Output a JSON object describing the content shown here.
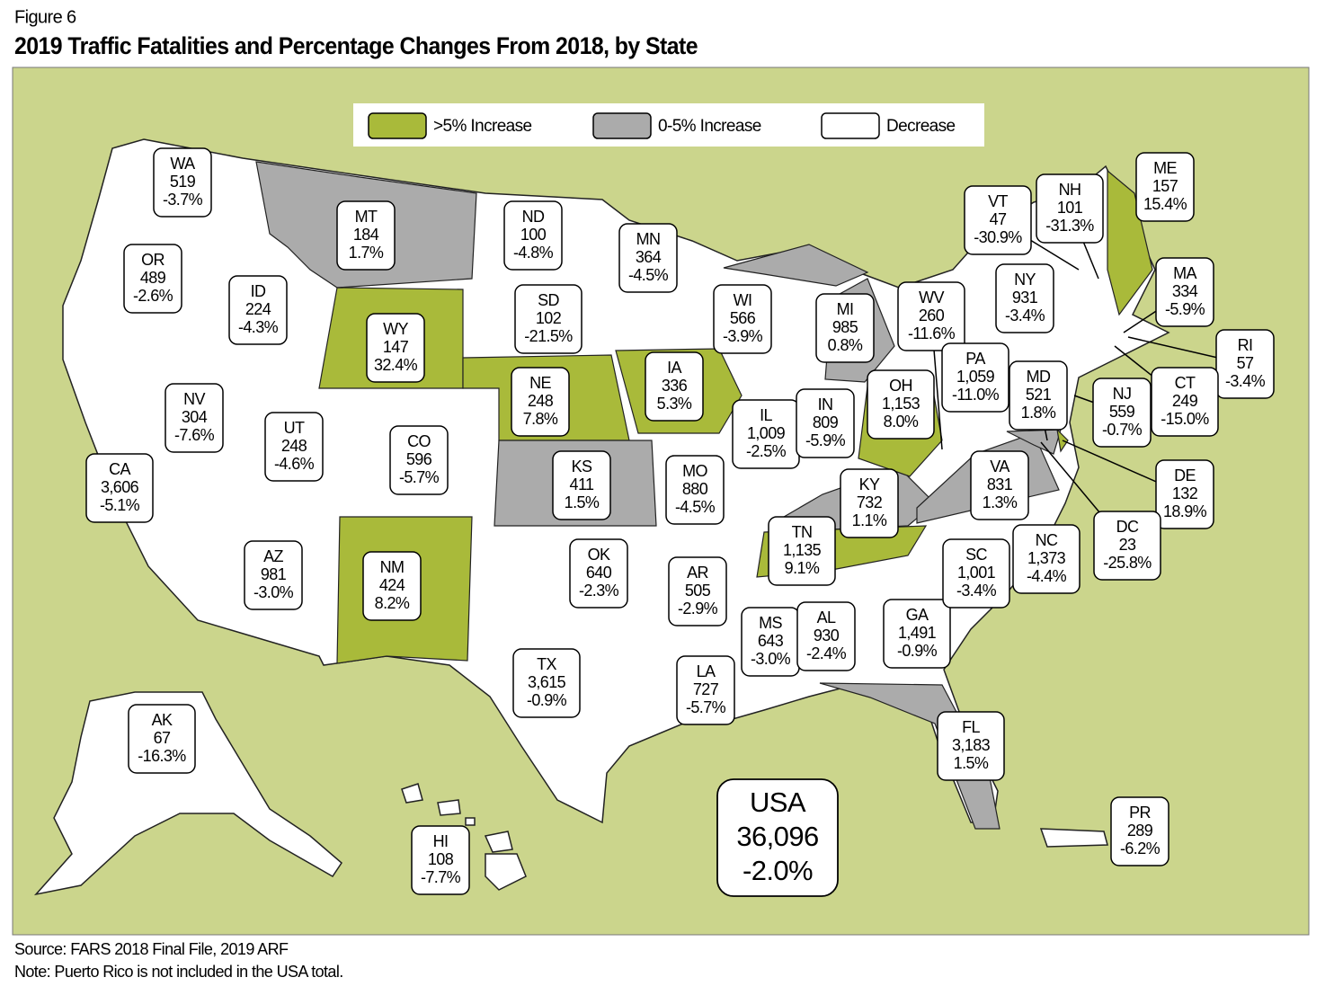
{
  "header": {
    "figure": "Figure 6",
    "title": "2019 Traffic Fatalities and Percentage Changes From 2018, by State"
  },
  "legend": [
    {
      "label": ">5% Increase",
      "color": "#a9ba3a"
    },
    {
      "label": "0-5% Increase",
      "color": "#ababab"
    },
    {
      "label": "Decrease",
      "color": "#ffffff"
    }
  ],
  "background_color": "#cbd58c",
  "states": [
    {
      "abbr": "WA",
      "fatalities": "519",
      "change": "-3.7%"
    },
    {
      "abbr": "OR",
      "fatalities": "489",
      "change": "-2.6%"
    },
    {
      "abbr": "ID",
      "fatalities": "224",
      "change": "-4.3%"
    },
    {
      "abbr": "MT",
      "fatalities": "184",
      "change": "1.7%",
      "color": "#ababab"
    },
    {
      "abbr": "WY",
      "fatalities": "147",
      "change": "32.4%",
      "color": "#a9ba3a"
    },
    {
      "abbr": "NV",
      "fatalities": "304",
      "change": "-7.6%"
    },
    {
      "abbr": "UT",
      "fatalities": "248",
      "change": "-4.6%"
    },
    {
      "abbr": "CO",
      "fatalities": "596",
      "change": "-5.7%"
    },
    {
      "abbr": "CA",
      "fatalities": "3,606",
      "change": "-5.1%"
    },
    {
      "abbr": "AZ",
      "fatalities": "981",
      "change": "-3.0%"
    },
    {
      "abbr": "NM",
      "fatalities": "424",
      "change": "8.2%",
      "color": "#a9ba3a"
    },
    {
      "abbr": "ND",
      "fatalities": "100",
      "change": "-4.8%"
    },
    {
      "abbr": "SD",
      "fatalities": "102",
      "change": "-21.5%"
    },
    {
      "abbr": "NE",
      "fatalities": "248",
      "change": "7.8%",
      "color": "#a9ba3a"
    },
    {
      "abbr": "KS",
      "fatalities": "411",
      "change": "1.5%",
      "color": "#ababab"
    },
    {
      "abbr": "OK",
      "fatalities": "640",
      "change": "-2.3%"
    },
    {
      "abbr": "TX",
      "fatalities": "3,615",
      "change": "-0.9%"
    },
    {
      "abbr": "MN",
      "fatalities": "364",
      "change": "-4.5%"
    },
    {
      "abbr": "IA",
      "fatalities": "336",
      "change": "5.3%",
      "color": "#a9ba3a"
    },
    {
      "abbr": "MO",
      "fatalities": "880",
      "change": "-4.5%"
    },
    {
      "abbr": "AR",
      "fatalities": "505",
      "change": "-2.9%"
    },
    {
      "abbr": "LA",
      "fatalities": "727",
      "change": "-5.7%"
    },
    {
      "abbr": "WI",
      "fatalities": "566",
      "change": "-3.9%"
    },
    {
      "abbr": "IL",
      "fatalities": "1,009",
      "change": "-2.5%"
    },
    {
      "abbr": "MS",
      "fatalities": "643",
      "change": "-3.0%"
    },
    {
      "abbr": "AL",
      "fatalities": "930",
      "change": "-2.4%"
    },
    {
      "abbr": "TN",
      "fatalities": "1,135",
      "change": "9.1%",
      "color": "#a9ba3a"
    },
    {
      "abbr": "KY",
      "fatalities": "732",
      "change": "1.1%",
      "color": "#ababab"
    },
    {
      "abbr": "IN",
      "fatalities": "809",
      "change": "-5.9%"
    },
    {
      "abbr": "MI",
      "fatalities": "985",
      "change": "0.8%",
      "color": "#ababab"
    },
    {
      "abbr": "OH",
      "fatalities": "1,153",
      "change": "8.0%",
      "color": "#a9ba3a"
    },
    {
      "abbr": "WV",
      "fatalities": "260",
      "change": "-11.6%"
    },
    {
      "abbr": "GA",
      "fatalities": "1,491",
      "change": "-0.9%"
    },
    {
      "abbr": "FL",
      "fatalities": "3,183",
      "change": "1.5%",
      "color": "#ababab"
    },
    {
      "abbr": "SC",
      "fatalities": "1,001",
      "change": "-3.4%"
    },
    {
      "abbr": "NC",
      "fatalities": "1,373",
      "change": "-4.4%"
    },
    {
      "abbr": "VA",
      "fatalities": "831",
      "change": "1.3%",
      "color": "#ababab"
    },
    {
      "abbr": "PA",
      "fatalities": "1,059",
      "change": "-11.0%"
    },
    {
      "abbr": "NY",
      "fatalities": "931",
      "change": "-3.4%"
    },
    {
      "abbr": "VT",
      "fatalities": "47",
      "change": "-30.9%"
    },
    {
      "abbr": "NH",
      "fatalities": "101",
      "change": "-31.3%"
    },
    {
      "abbr": "ME",
      "fatalities": "157",
      "change": "15.4%",
      "color": "#a9ba3a"
    },
    {
      "abbr": "MA",
      "fatalities": "334",
      "change": "-5.9%"
    },
    {
      "abbr": "RI",
      "fatalities": "57",
      "change": "-3.4%"
    },
    {
      "abbr": "CT",
      "fatalities": "249",
      "change": "-15.0%"
    },
    {
      "abbr": "NJ",
      "fatalities": "559",
      "change": "-0.7%"
    },
    {
      "abbr": "MD",
      "fatalities": "521",
      "change": "1.8%",
      "color": "#ababab"
    },
    {
      "abbr": "DE",
      "fatalities": "132",
      "change": "18.9%",
      "color": "#a9ba3a"
    },
    {
      "abbr": "DC",
      "fatalities": "23",
      "change": "-25.8%"
    },
    {
      "abbr": "AK",
      "fatalities": "67",
      "change": "-16.3%"
    },
    {
      "abbr": "HI",
      "fatalities": "108",
      "change": "-7.7%"
    },
    {
      "abbr": "PR",
      "fatalities": "289",
      "change": "-6.2%"
    }
  ],
  "usa": {
    "label": "USA",
    "fatalities": "36,096",
    "change": "-2.0%"
  },
  "notes": [
    "Source: FARS 2018 Final File, 2019 ARF",
    "Note: Puerto Rico is not included in the USA total."
  ]
}
